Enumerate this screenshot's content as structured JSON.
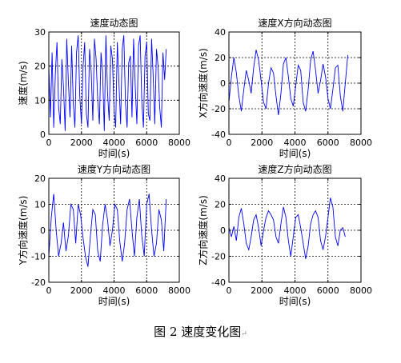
{
  "figure": {
    "caption": "图 2  速度变化图",
    "return_mark": "↵",
    "line_color": "#0000ff"
  },
  "chart_data": [
    {
      "type": "line",
      "title": "速度动态图",
      "xlabel": "时间(s)",
      "ylabel": "速度(m/s)",
      "xlim": [
        0,
        8000
      ],
      "ylim": [
        0,
        30
      ],
      "xticks": [
        0,
        2000,
        4000,
        6000,
        8000
      ],
      "yticks": [
        0,
        10,
        20,
        30
      ],
      "grid": true,
      "series": [
        {
          "x": [
            0,
            100,
            200,
            300,
            400,
            500,
            600,
            700,
            800,
            900,
            1000,
            1100,
            1200,
            1300,
            1400,
            1500,
            1600,
            1700,
            1800,
            1900,
            2000,
            2100,
            2200,
            2300,
            2400,
            2500,
            2600,
            2700,
            2800,
            2900,
            3000,
            3100,
            3200,
            3300,
            3400,
            3500,
            3600,
            3700,
            3800,
            3900,
            4000,
            4100,
            4200,
            4300,
            4400,
            4500,
            4600,
            4700,
            4800,
            4900,
            5000,
            5100,
            5200,
            5300,
            5400,
            5500,
            5600,
            5700,
            5800,
            5900,
            6000,
            6100,
            6200,
            6300,
            6400,
            6500,
            6600,
            6700,
            6800,
            6900,
            7000,
            7100,
            7200
          ],
          "y": [
            20,
            5,
            24,
            2,
            18,
            27,
            8,
            3,
            22,
            14,
            1,
            28,
            15,
            5,
            26,
            9,
            2,
            24,
            29,
            11,
            3,
            20,
            27,
            6,
            2,
            25,
            18,
            4,
            28,
            22,
            10,
            3,
            24,
            18,
            1,
            29,
            12,
            4,
            26,
            22,
            7,
            2,
            27,
            15,
            3,
            25,
            29,
            9,
            2,
            21,
            23,
            5,
            28,
            14,
            3,
            26,
            29,
            10,
            2,
            23,
            27,
            6,
            4,
            28,
            17,
            3,
            25,
            20,
            8,
            2,
            24,
            16,
            25
          ]
        }
      ]
    },
    {
      "type": "line",
      "title": "速度X方向动态图",
      "xlabel": "时间(s)",
      "ylabel": "X方向速度(m/s)",
      "xlim": [
        0,
        8000
      ],
      "ylim": [
        -40,
        40
      ],
      "xticks": [
        0,
        2000,
        4000,
        6000,
        8000
      ],
      "yticks": [
        -40,
        -20,
        0,
        20,
        40
      ],
      "grid": true,
      "series": [
        {
          "x": [
            0,
            150,
            300,
            450,
            600,
            750,
            900,
            1050,
            1200,
            1350,
            1500,
            1650,
            1800,
            1950,
            2100,
            2250,
            2400,
            2550,
            2700,
            2850,
            3000,
            3150,
            3300,
            3450,
            3600,
            3750,
            3900,
            4050,
            4200,
            4350,
            4500,
            4650,
            4800,
            4950,
            5100,
            5250,
            5400,
            5550,
            5700,
            5850,
            6000,
            6150,
            6300,
            6450,
            6600,
            6750,
            6900,
            7050,
            7200
          ],
          "y": [
            -15,
            5,
            20,
            8,
            -10,
            -22,
            -5,
            10,
            2,
            -8,
            12,
            26,
            18,
            2,
            -15,
            -20,
            0,
            12,
            8,
            -10,
            -25,
            -8,
            15,
            20,
            5,
            -12,
            -18,
            -2,
            14,
            10,
            -15,
            -22,
            -5,
            18,
            25,
            10,
            -8,
            2,
            15,
            5,
            -12,
            -20,
            -5,
            12,
            14,
            -10,
            -22,
            0,
            22
          ]
        }
      ]
    },
    {
      "type": "line",
      "title": "速度Y方向动态图",
      "xlabel": "时间(s)",
      "ylabel": "Y方向速度(m/s)",
      "xlim": [
        0,
        8000
      ],
      "ylim": [
        -20,
        20
      ],
      "xticks": [
        0,
        2000,
        4000,
        6000,
        8000
      ],
      "yticks": [
        -20,
        -10,
        0,
        10,
        20
      ],
      "grid": true,
      "series": [
        {
          "x": [
            0,
            150,
            300,
            450,
            600,
            750,
            900,
            1050,
            1200,
            1350,
            1500,
            1650,
            1800,
            1950,
            2100,
            2250,
            2400,
            2550,
            2700,
            2850,
            3000,
            3150,
            3300,
            3450,
            3600,
            3750,
            3900,
            4050,
            4200,
            4350,
            4500,
            4650,
            4800,
            4950,
            5100,
            5250,
            5400,
            5550,
            5700,
            5850,
            6000,
            6150,
            6300,
            6450,
            6600,
            6750,
            6900,
            7050,
            7200
          ],
          "y": [
            -10,
            5,
            14,
            0,
            -10,
            -5,
            3,
            -8,
            -2,
            10,
            8,
            -5,
            10,
            6,
            -3,
            -10,
            -14,
            -2,
            8,
            6,
            -8,
            -12,
            2,
            10,
            4,
            -6,
            0,
            10,
            8,
            -4,
            -12,
            -5,
            8,
            12,
            0,
            -10,
            5,
            12,
            -2,
            -10,
            10,
            14,
            0,
            -10,
            -5,
            8,
            4,
            -8,
            12
          ]
        }
      ]
    },
    {
      "type": "line",
      "title": "速度Z方向动态图",
      "xlabel": "时间(s)",
      "ylabel": "Z方向速度(m/s)",
      "xlim": [
        0,
        8000
      ],
      "ylim": [
        -40,
        40
      ],
      "xticks": [
        0,
        2000,
        4000,
        6000,
        8000
      ],
      "yticks": [
        -40,
        -20,
        0,
        20,
        40
      ],
      "grid": true,
      "series": [
        {
          "x": [
            0,
            150,
            300,
            450,
            600,
            750,
            900,
            1050,
            1200,
            1350,
            1500,
            1650,
            1800,
            1950,
            2100,
            2250,
            2400,
            2550,
            2700,
            2850,
            3000,
            3150,
            3300,
            3450,
            3600,
            3750,
            3900,
            4050,
            4200,
            4350,
            4500,
            4650,
            4800,
            4950,
            5100,
            5250,
            5400,
            5550,
            5700,
            5850,
            6000,
            6150,
            6300,
            6450,
            6600,
            6750,
            6900,
            7050
          ],
          "y": [
            2,
            -5,
            3,
            -8,
            10,
            17,
            5,
            -10,
            -15,
            -5,
            8,
            12,
            2,
            -12,
            0,
            10,
            15,
            12,
            8,
            -5,
            -10,
            5,
            18,
            10,
            -8,
            -20,
            -5,
            10,
            12,
            2,
            -10,
            -22,
            -12,
            5,
            12,
            15,
            10,
            -8,
            -15,
            -5,
            10,
            25,
            18,
            -5,
            -12,
            0,
            2,
            -5
          ]
        }
      ]
    }
  ]
}
